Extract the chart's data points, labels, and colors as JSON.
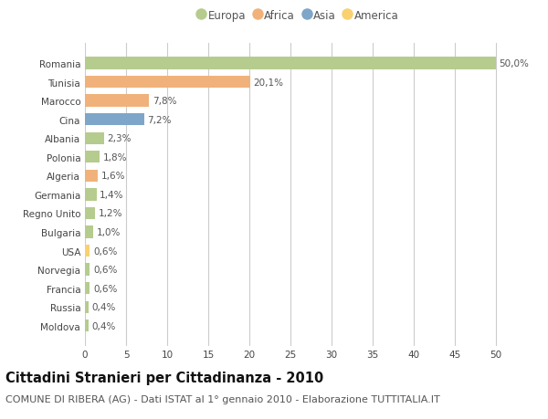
{
  "countries": [
    "Romania",
    "Tunisia",
    "Marocco",
    "Cina",
    "Albania",
    "Polonia",
    "Algeria",
    "Germania",
    "Regno Unito",
    "Bulgaria",
    "USA",
    "Norvegia",
    "Francia",
    "Russia",
    "Moldova"
  ],
  "values": [
    50.0,
    20.1,
    7.8,
    7.2,
    2.3,
    1.8,
    1.6,
    1.4,
    1.2,
    1.0,
    0.6,
    0.6,
    0.6,
    0.4,
    0.4
  ],
  "labels": [
    "50,0%",
    "20,1%",
    "7,8%",
    "7,2%",
    "2,3%",
    "1,8%",
    "1,6%",
    "1,4%",
    "1,2%",
    "1,0%",
    "0,6%",
    "0,6%",
    "0,6%",
    "0,4%",
    "0,4%"
  ],
  "continents": [
    "Europa",
    "Africa",
    "Africa",
    "Asia",
    "Europa",
    "Europa",
    "Africa",
    "Europa",
    "Europa",
    "Europa",
    "America",
    "Europa",
    "Europa",
    "Europa",
    "Europa"
  ],
  "colors": {
    "Europa": "#b5cc8e",
    "Africa": "#f0b27a",
    "Asia": "#7ea6c8",
    "America": "#f9d170"
  },
  "legend_order": [
    "Europa",
    "Africa",
    "Asia",
    "America"
  ],
  "xlim": [
    0,
    52
  ],
  "xticks": [
    0,
    5,
    10,
    15,
    20,
    25,
    30,
    35,
    40,
    45,
    50
  ],
  "title": "Cittadini Stranieri per Cittadinanza - 2010",
  "subtitle": "COMUNE DI RIBERA (AG) - Dati ISTAT al 1° gennaio 2010 - Elaborazione TUTTITALIA.IT",
  "bg_color": "#ffffff",
  "grid_color": "#cccccc",
  "bar_height": 0.65,
  "title_fontsize": 10.5,
  "subtitle_fontsize": 8,
  "label_fontsize": 7.5,
  "tick_fontsize": 7.5,
  "legend_fontsize": 8.5
}
